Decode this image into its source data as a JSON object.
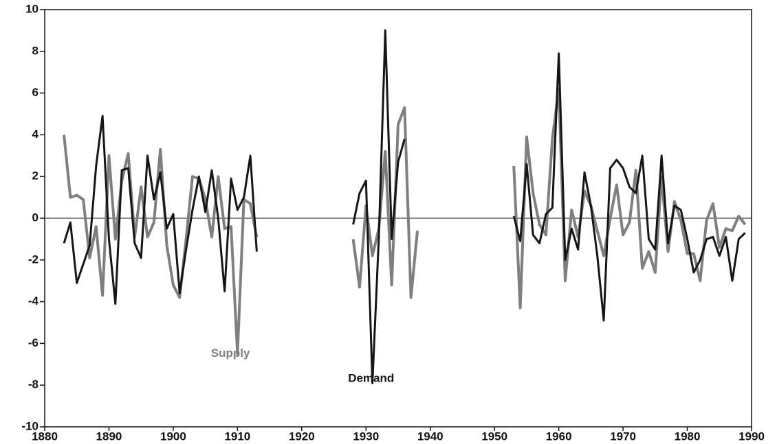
{
  "chart_data": {
    "type": "line",
    "x": [
      1883,
      1884,
      1885,
      1886,
      1887,
      1888,
      1889,
      1890,
      1891,
      1892,
      1893,
      1894,
      1895,
      1896,
      1897,
      1898,
      1899,
      1900,
      1901,
      1902,
      1903,
      1904,
      1905,
      1906,
      1907,
      1908,
      1909,
      1910,
      1911,
      1912,
      1913,
      1914,
      1915,
      1916,
      1917,
      1918,
      1919,
      1920,
      1921,
      1922,
      1923,
      1924,
      1925,
      1926,
      1927,
      1928,
      1929,
      1930,
      1931,
      1932,
      1933,
      1934,
      1935,
      1936,
      1937,
      1938,
      1939,
      1940,
      1941,
      1942,
      1943,
      1944,
      1945,
      1946,
      1947,
      1948,
      1949,
      1950,
      1951,
      1952,
      1953,
      1954,
      1955,
      1956,
      1957,
      1958,
      1959,
      1960,
      1961,
      1962,
      1963,
      1964,
      1965,
      1966,
      1967,
      1968,
      1969,
      1970,
      1971,
      1972,
      1973,
      1974,
      1975,
      1976,
      1977,
      1978,
      1979,
      1980,
      1981,
      1982,
      1983,
      1984,
      1985,
      1986,
      1987,
      1988,
      1989
    ],
    "series": [
      {
        "name": "Supply",
        "color": "#7f7f7f",
        "values": [
          4.0,
          1.0,
          1.1,
          0.9,
          -1.9,
          -0.4,
          -3.7,
          3.0,
          -1.0,
          1.8,
          3.1,
          -0.9,
          1.5,
          -0.9,
          -0.2,
          3.3,
          -1.3,
          -3.2,
          -3.8,
          -1.0,
          2.0,
          1.9,
          0.9,
          -0.9,
          2.0,
          -0.5,
          -0.4,
          -6.5,
          0.9,
          0.7,
          -0.9,
          null,
          null,
          null,
          null,
          null,
          null,
          null,
          null,
          null,
          null,
          null,
          null,
          null,
          null,
          -1.0,
          -3.3,
          0.6,
          -1.8,
          -0.5,
          3.2,
          -3.2,
          4.5,
          5.3,
          -3.8,
          -0.6,
          null,
          null,
          null,
          null,
          null,
          null,
          null,
          null,
          null,
          null,
          null,
          null,
          null,
          null,
          2.5,
          -4.3,
          3.9,
          1.2,
          -0.3,
          -0.8,
          3.8,
          6.2,
          -3.0,
          0.4,
          -0.9,
          1.3,
          0.6,
          -0.6,
          -1.8,
          0.0,
          1.6,
          -0.8,
          -0.2,
          2.3,
          -2.4,
          -1.6,
          -2.6,
          2.0,
          -1.6,
          0.8,
          -0.1,
          -1.7,
          -1.7,
          -3.0,
          -0.1,
          0.7,
          -1.4,
          -0.5,
          -0.6,
          0.1,
          -0.3
        ]
      },
      {
        "name": "Demand",
        "color": "#151515",
        "values": [
          -1.2,
          -0.2,
          -3.1,
          -2.2,
          -1.3,
          2.5,
          4.9,
          -1.0,
          -4.1,
          2.3,
          2.4,
          -1.2,
          -1.9,
          3.0,
          0.9,
          2.2,
          -0.5,
          0.2,
          -3.6,
          -1.5,
          0.4,
          2.0,
          0.3,
          2.3,
          0.0,
          -3.5,
          1.9,
          0.4,
          1.0,
          3.0,
          -1.6,
          null,
          null,
          null,
          null,
          null,
          null,
          null,
          null,
          null,
          null,
          null,
          null,
          null,
          null,
          -0.3,
          1.2,
          1.8,
          -7.9,
          -0.9,
          9.0,
          -1.0,
          2.7,
          3.8,
          null,
          null,
          null,
          null,
          null,
          null,
          null,
          null,
          null,
          null,
          null,
          null,
          null,
          null,
          null,
          null,
          0.1,
          -1.1,
          2.6,
          -0.8,
          -1.2,
          0.2,
          0.5,
          7.9,
          -2.0,
          -0.5,
          -1.5,
          2.2,
          0.6,
          -1.8,
          -4.9,
          2.4,
          2.8,
          2.4,
          1.5,
          1.2,
          3.0,
          -1.0,
          -1.5,
          3.0,
          -1.2,
          0.6,
          0.4,
          -1.0,
          -2.6,
          -2.0,
          -1.0,
          -0.9,
          -1.8,
          -0.9,
          -3.0,
          -1.0,
          -0.7
        ]
      }
    ],
    "annotations": [
      {
        "text": "Supply"
      },
      {
        "text": "Demand"
      }
    ],
    "xlim": [
      1880,
      1990
    ],
    "xticks": [
      1880,
      1890,
      1900,
      1910,
      1920,
      1930,
      1940,
      1950,
      1960,
      1970,
      1980,
      1990
    ],
    "ylim": [
      -10,
      10
    ],
    "yticks": [
      -10,
      -8,
      -6,
      -4,
      -2,
      0,
      2,
      4,
      6,
      8,
      10
    ],
    "zero_line": true
  }
}
